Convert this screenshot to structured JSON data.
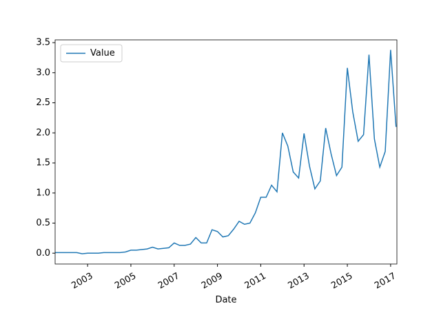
{
  "chart_data": {
    "type": "line",
    "x_label": "Date",
    "x": [
      2001.5,
      2001.75,
      2002,
      2002.25,
      2002.5,
      2002.75,
      2003,
      2003.25,
      2003.5,
      2003.75,
      2004,
      2004.25,
      2004.5,
      2004.75,
      2005,
      2005.25,
      2005.5,
      2005.75,
      2006,
      2006.25,
      2006.5,
      2006.75,
      2007,
      2007.25,
      2007.5,
      2007.75,
      2008,
      2008.25,
      2008.5,
      2008.75,
      2009,
      2009.25,
      2009.5,
      2009.75,
      2010,
      2010.25,
      2010.5,
      2010.75,
      2011,
      2011.25,
      2011.5,
      2011.75,
      2012,
      2012.25,
      2012.5,
      2012.75,
      2013,
      2013.25,
      2013.5,
      2013.75,
      2014,
      2014.25,
      2014.5,
      2014.75,
      2015,
      2015.25,
      2015.5,
      2015.75,
      2016,
      2016.25,
      2016.5,
      2016.75,
      2017,
      2017.25
    ],
    "series": [
      {
        "name": "Value",
        "color": "#1f77b4",
        "values": [
          0.01,
          0.01,
          0.01,
          0.01,
          0.01,
          -0.01,
          0.0,
          0.0,
          0.0,
          0.01,
          0.01,
          0.01,
          0.01,
          0.02,
          0.05,
          0.05,
          0.06,
          0.07,
          0.1,
          0.07,
          0.08,
          0.09,
          0.17,
          0.13,
          0.13,
          0.15,
          0.26,
          0.17,
          0.17,
          0.39,
          0.36,
          0.27,
          0.29,
          0.4,
          0.53,
          0.48,
          0.5,
          0.67,
          0.93,
          0.93,
          1.13,
          1.02,
          2.0,
          1.78,
          1.35,
          1.25,
          1.99,
          1.45,
          1.07,
          1.2,
          2.08,
          1.65,
          1.29,
          1.43,
          3.08,
          2.35,
          1.86,
          1.97,
          3.3,
          1.9,
          1.43,
          1.69,
          3.38,
          2.1
        ]
      }
    ],
    "xlim": [
      2001.5,
      2017.29
    ],
    "xticks": [
      2003,
      2005,
      2007,
      2009,
      2011,
      2013,
      2015,
      2017
    ],
    "ylim": [
      -0.18,
      3.546
    ],
    "yticks": [
      {
        "value": 0,
        "label": "0.0"
      },
      0.5,
      {
        "value": 1,
        "label": "1.0"
      },
      1.5,
      {
        "value": 2,
        "label": "2.0"
      },
      2.5,
      {
        "value": 3,
        "label": "3.0"
      },
      3.5
    ],
    "legend": "upper left"
  }
}
